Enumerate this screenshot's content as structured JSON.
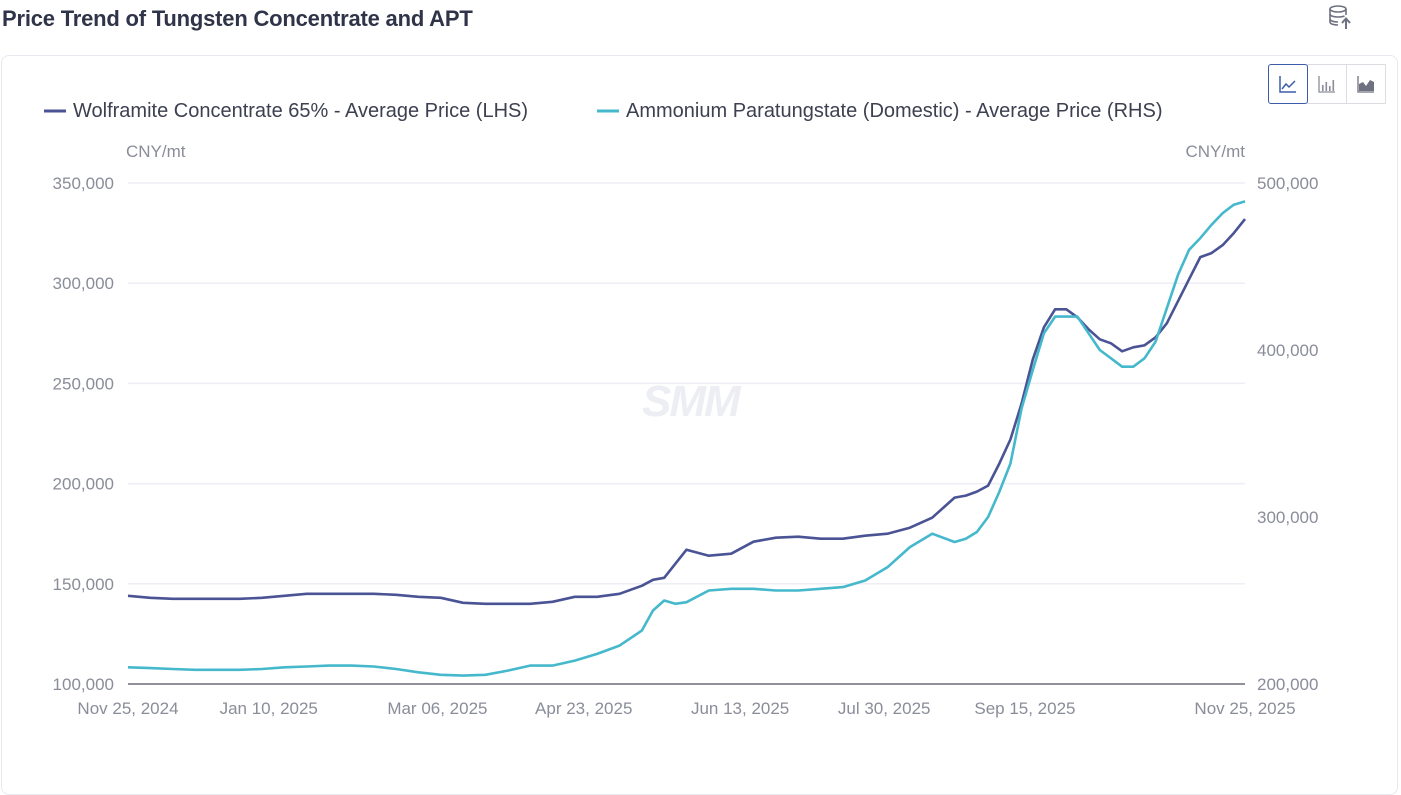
{
  "page": {
    "title": "Price Trend of Tungsten Concentrate and APT",
    "export_icon": "database-export-icon"
  },
  "chart_type_switch": {
    "options": [
      {
        "name": "line",
        "icon": "line-chart-icon",
        "active": true
      },
      {
        "name": "bar",
        "icon": "bar-chart-icon",
        "active": false
      },
      {
        "name": "area",
        "icon": "area-chart-icon",
        "active": false
      }
    ]
  },
  "watermark": "SMM",
  "colors": {
    "series_lhs": "#4a5394",
    "series_rhs": "#45b8cc",
    "grid": "#eeeef5",
    "axis": "#8f909a"
  },
  "chart_data": {
    "type": "line",
    "title": "Price Trend of Tungsten Concentrate and APT",
    "xlabel": "",
    "ylabel_left": "CNY/mt",
    "ylabel_right": "CNY/mt",
    "ylim_left": [
      100000,
      350000
    ],
    "ylim_right": [
      200000,
      500000
    ],
    "yticks_left": [
      "100,000",
      "150,000",
      "200,000",
      "250,000",
      "300,000",
      "350,000"
    ],
    "yticks_right": [
      "200,000",
      "300,000",
      "400,000",
      "500,000"
    ],
    "xticks": [
      "Nov 25, 2024",
      "Jan 10, 2025",
      "Mar 06, 2025",
      "Apr 23, 2025",
      "Jun 13, 2025",
      "Jul 30, 2025",
      "Sep 15, 2025",
      "Nov 25, 2025"
    ],
    "xtick_positions": [
      0,
      0.126,
      0.277,
      0.408,
      0.548,
      0.677,
      0.803,
      1.0
    ],
    "legend": [
      "Wolframite Concentrate 65% - Average Price (LHS)",
      "Ammonium Paratungstate (Domestic) - Average Price (RHS)"
    ],
    "legend_position": "top",
    "grid": true,
    "x": [
      0.0,
      0.02,
      0.04,
      0.06,
      0.08,
      0.1,
      0.12,
      0.14,
      0.16,
      0.18,
      0.2,
      0.22,
      0.24,
      0.26,
      0.28,
      0.3,
      0.32,
      0.34,
      0.36,
      0.38,
      0.4,
      0.42,
      0.44,
      0.46,
      0.47,
      0.48,
      0.49,
      0.5,
      0.52,
      0.54,
      0.56,
      0.58,
      0.6,
      0.62,
      0.64,
      0.66,
      0.68,
      0.7,
      0.72,
      0.74,
      0.75,
      0.76,
      0.77,
      0.78,
      0.79,
      0.8,
      0.81,
      0.82,
      0.83,
      0.84,
      0.85,
      0.86,
      0.87,
      0.88,
      0.89,
      0.9,
      0.91,
      0.92,
      0.93,
      0.94,
      0.95,
      0.96,
      0.97,
      0.98,
      0.99,
      1.0
    ],
    "series": [
      {
        "name": "Wolframite Concentrate 65% - Average Price (LHS)",
        "axis": "left",
        "values": [
          144000,
          143000,
          142500,
          142500,
          142500,
          142500,
          143000,
          144000,
          145000,
          145000,
          145000,
          145000,
          144500,
          143500,
          143000,
          140500,
          140000,
          140000,
          140000,
          141000,
          143500,
          143500,
          145000,
          149000,
          152000,
          153000,
          160000,
          167000,
          164000,
          165000,
          171000,
          173000,
          173500,
          172500,
          172500,
          174000,
          175000,
          178000,
          183000,
          193000,
          194000,
          196000,
          199000,
          210000,
          222000,
          240000,
          262000,
          278000,
          287000,
          287000,
          283000,
          277000,
          272000,
          270000,
          266000,
          268000,
          269000,
          273000,
          280000,
          291000,
          302000,
          313000,
          315000,
          319000,
          325000,
          332000
        ]
      },
      {
        "name": "Ammonium Paratungstate (Domestic) - Average Price (RHS)",
        "axis": "right",
        "values": [
          210000,
          209500,
          209000,
          208500,
          208500,
          208500,
          209000,
          210000,
          210500,
          211000,
          211000,
          210500,
          209000,
          207000,
          205500,
          205000,
          205500,
          208000,
          211000,
          211000,
          214000,
          218000,
          223000,
          232000,
          244000,
          250000,
          248000,
          249000,
          256000,
          257000,
          257000,
          256000,
          256000,
          257000,
          258000,
          262000,
          270000,
          282000,
          290000,
          285000,
          287000,
          291000,
          300000,
          315000,
          332000,
          365000,
          388000,
          410000,
          420000,
          420000,
          420000,
          410000,
          400000,
          395000,
          390000,
          390000,
          395000,
          405000,
          425000,
          445000,
          460000,
          467000,
          475000,
          482000,
          487000,
          489000
        ]
      }
    ]
  }
}
